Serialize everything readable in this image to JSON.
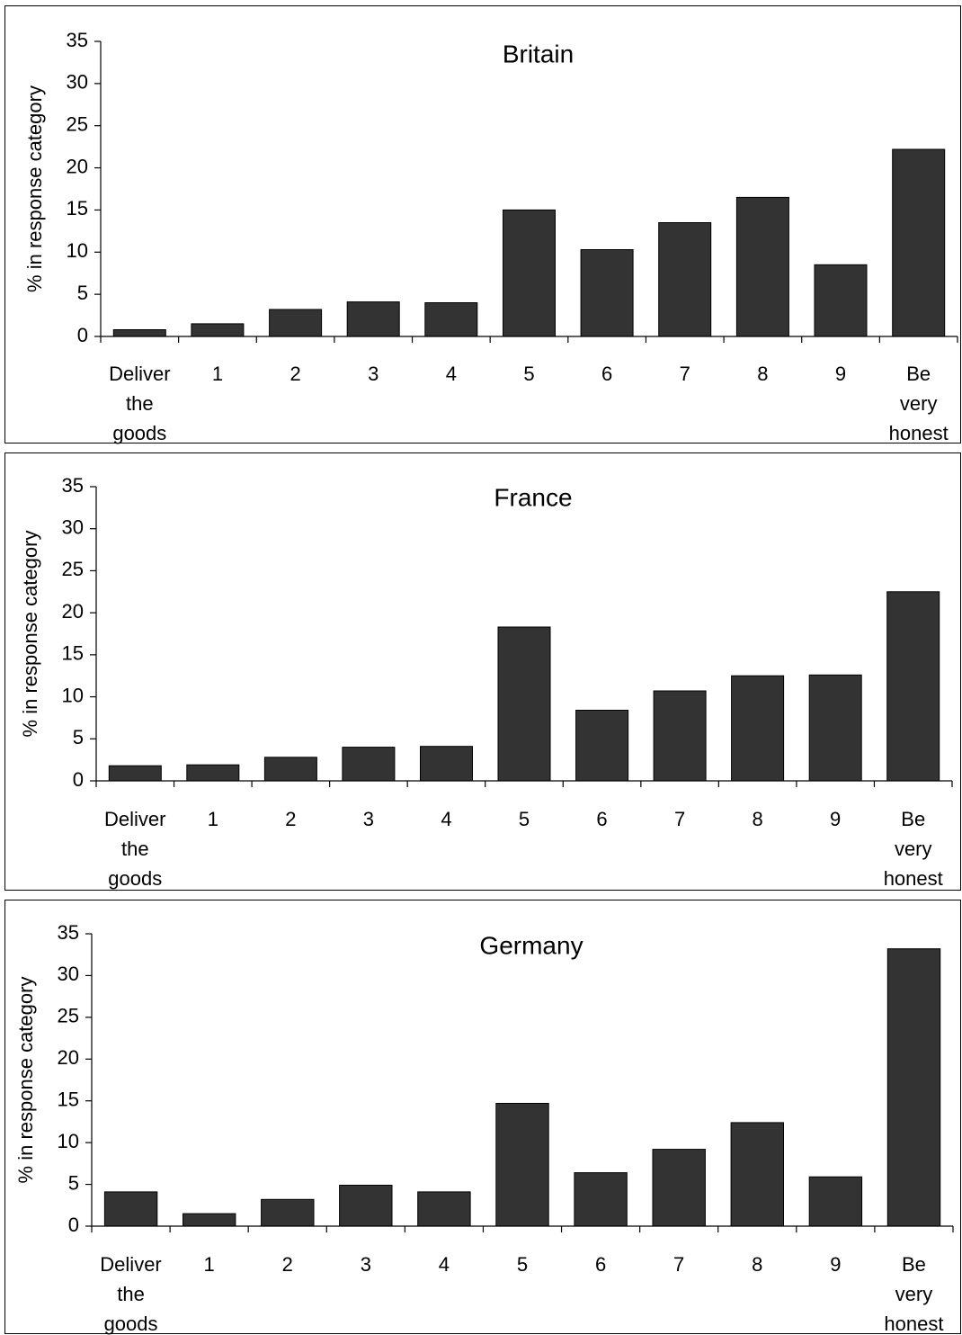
{
  "chart_data": [
    {
      "type": "bar",
      "title": "Britain",
      "xlabel": "",
      "ylabel": "% in response category",
      "ylim": [
        0,
        35
      ],
      "yticks": [
        "0",
        "5",
        "10",
        "15",
        "20",
        "25",
        "30",
        "35"
      ],
      "categories": [
        [
          "Deliver",
          "the",
          "goods"
        ],
        [
          "1"
        ],
        [
          "2"
        ],
        [
          "3"
        ],
        [
          "4"
        ],
        [
          "5"
        ],
        [
          "6"
        ],
        [
          "7"
        ],
        [
          "8"
        ],
        [
          "9"
        ],
        [
          "Be",
          "very",
          "honest"
        ]
      ],
      "values": [
        0.8,
        1.5,
        3.2,
        4.1,
        4.0,
        15.0,
        10.3,
        13.5,
        16.5,
        8.5,
        22.2
      ],
      "bar_color": "#333333",
      "grid": false
    },
    {
      "type": "bar",
      "title": "France",
      "xlabel": "",
      "ylabel": "% in response category",
      "ylim": [
        0,
        35
      ],
      "yticks": [
        "0",
        "5",
        "10",
        "15",
        "20",
        "25",
        "30",
        "35"
      ],
      "categories": [
        [
          "Deliver",
          "the",
          "goods"
        ],
        [
          "1"
        ],
        [
          "2"
        ],
        [
          "3"
        ],
        [
          "4"
        ],
        [
          "5"
        ],
        [
          "6"
        ],
        [
          "7"
        ],
        [
          "8"
        ],
        [
          "9"
        ],
        [
          "Be",
          "very",
          "honest"
        ]
      ],
      "values": [
        1.8,
        1.9,
        2.8,
        4.0,
        4.1,
        18.3,
        8.4,
        10.7,
        12.5,
        12.6,
        22.5
      ],
      "bar_color": "#333333",
      "grid": false
    },
    {
      "type": "bar",
      "title": "Germany",
      "xlabel": "",
      "ylabel": "% in response category",
      "ylim": [
        0,
        35
      ],
      "yticks": [
        "0",
        "5",
        "10",
        "15",
        "20",
        "25",
        "30",
        "35"
      ],
      "categories": [
        [
          "Deliver",
          "the",
          "goods"
        ],
        [
          "1"
        ],
        [
          "2"
        ],
        [
          "3"
        ],
        [
          "4"
        ],
        [
          "5"
        ],
        [
          "6"
        ],
        [
          "7"
        ],
        [
          "8"
        ],
        [
          "9"
        ],
        [
          "Be",
          "very",
          "honest"
        ]
      ],
      "values": [
        4.1,
        1.5,
        3.2,
        4.9,
        4.1,
        14.7,
        6.4,
        9.2,
        12.4,
        5.9,
        33.2
      ],
      "bar_color": "#333333",
      "grid": false
    }
  ]
}
